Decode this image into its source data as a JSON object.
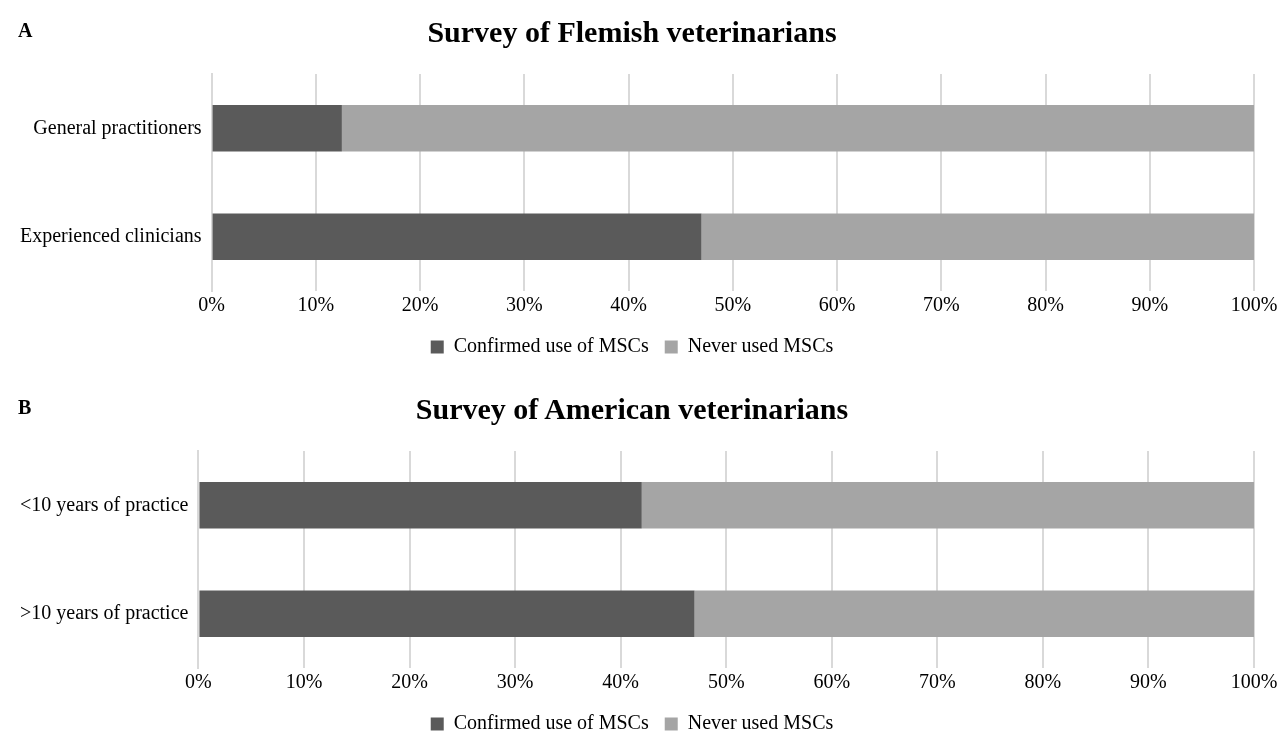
{
  "chart_data": [
    {
      "type": "bar",
      "title": "Survey of Flemish veterinarians",
      "annotations": [
        "A"
      ],
      "orientation": "horizontal",
      "stacked": true,
      "categories": [
        "General practitioners",
        "Experienced clinicians"
      ],
      "series": [
        {
          "name": "Confirmed use of MSCs",
          "color": "#5a5a5a",
          "values": [
            12.5,
            47
          ]
        },
        {
          "name": "Never used MSCs",
          "color": "#a5a5a5",
          "values": [
            87.5,
            53
          ]
        }
      ],
      "xlim": [
        0,
        100
      ],
      "xticks": [
        {
          "value": 0,
          "label": "0%"
        },
        {
          "value": 10,
          "label": "10%"
        },
        {
          "value": 20,
          "label": "20%"
        },
        {
          "value": 30,
          "label": "30%"
        },
        {
          "value": 40,
          "label": "40%"
        },
        {
          "value": 50,
          "label": "50%"
        },
        {
          "value": 60,
          "label": "60%"
        },
        {
          "value": 70,
          "label": "70%"
        },
        {
          "value": 80,
          "label": "80%"
        },
        {
          "value": 90,
          "label": "90%"
        },
        {
          "value": 100,
          "label": "100%"
        }
      ],
      "grid": "x",
      "legend": "bottom"
    },
    {
      "type": "bar",
      "title": "Survey of American veterinarians",
      "annotations": [
        "B"
      ],
      "orientation": "horizontal",
      "stacked": true,
      "categories": [
        "<10 years of practice",
        ">10 years of practice"
      ],
      "series": [
        {
          "name": "Confirmed use of MSCs",
          "color": "#5a5a5a",
          "values": [
            42,
            47
          ]
        },
        {
          "name": "Never used MSCs",
          "color": "#a5a5a5",
          "values": [
            58,
            53
          ]
        }
      ],
      "xlim": [
        0,
        100
      ],
      "xticks": [
        {
          "value": 0,
          "label": "0%"
        },
        {
          "value": 10,
          "label": "10%"
        },
        {
          "value": 20,
          "label": "20%"
        },
        {
          "value": 30,
          "label": "30%"
        },
        {
          "value": 40,
          "label": "40%"
        },
        {
          "value": 50,
          "label": "50%"
        },
        {
          "value": 60,
          "label": "60%"
        },
        {
          "value": 70,
          "label": "70%"
        },
        {
          "value": 80,
          "label": "80%"
        },
        {
          "value": 90,
          "label": "90%"
        },
        {
          "value": 100,
          "label": "100%"
        }
      ],
      "grid": "x",
      "legend": "bottom"
    }
  ]
}
